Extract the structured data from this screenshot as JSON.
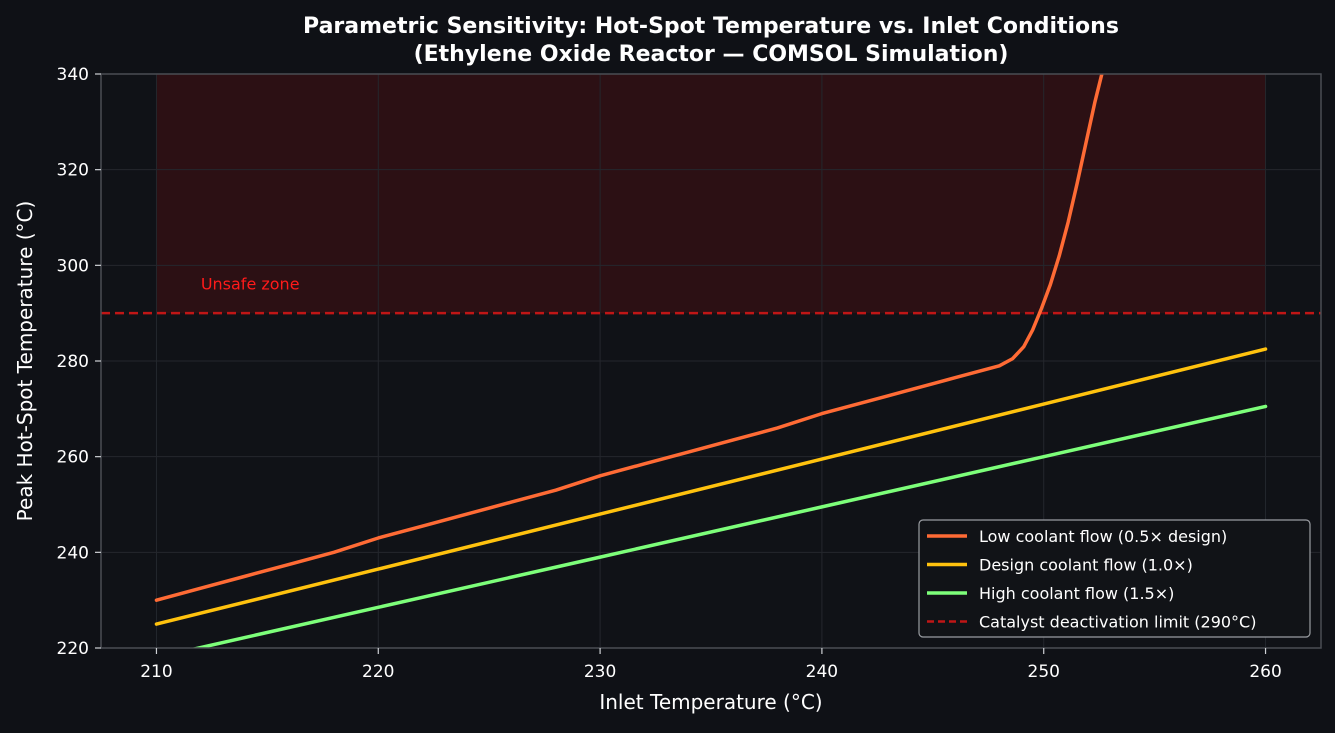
{
  "chart_data": {
    "type": "line",
    "title": "Parametric Sensitivity: Hot-Spot Temperature vs. Inlet Conditions",
    "subtitle": "(Ethylene Oxide Reactor — COMSOL Simulation)",
    "xlabel": "Inlet Temperature (°C)",
    "ylabel": "Peak Hot-Spot Temperature (°C)",
    "xlim": [
      207.5,
      262.5
    ],
    "ylim": [
      220,
      340
    ],
    "xticks": [
      210,
      220,
      230,
      240,
      250,
      260
    ],
    "yticks": [
      220,
      240,
      260,
      280,
      300,
      320,
      340
    ],
    "grid": true,
    "legend_position": "lower-right",
    "colors": {
      "background": "#0f1116",
      "plot_background": "#101217",
      "grid": "#24272d",
      "axes": "#4a4d53",
      "text": "#ffffff",
      "unsafe_fill": "#2c1014",
      "limit_line": "#c01616",
      "unsafe_label": "#ff1a1a"
    },
    "series": [
      {
        "name": "Low coolant flow (0.5× design)",
        "color": "#ff6b35",
        "x": [
          210,
          212,
          214,
          216,
          218,
          220,
          222,
          224,
          226,
          228,
          230,
          232,
          234,
          236,
          238,
          240,
          242,
          244,
          246,
          248,
          248.6,
          249.1,
          249.5,
          249.9,
          250.3,
          250.7,
          251.1,
          251.5,
          251.9,
          252.3,
          252.7,
          253
        ],
        "y": [
          230,
          232.5,
          235,
          237.5,
          240,
          243,
          245.5,
          248,
          250.5,
          253,
          256,
          258.5,
          261,
          263.5,
          266,
          269,
          271.5,
          274,
          276.5,
          279,
          280.5,
          283,
          286.5,
          291,
          296,
          302,
          309,
          317,
          325.5,
          334,
          341.5,
          346
        ]
      },
      {
        "name": "Design coolant flow (1.0×)",
        "color": "#ffc20e",
        "x": [
          210,
          220,
          230,
          240,
          250,
          260
        ],
        "y": [
          225,
          236.5,
          248,
          259.5,
          271,
          282.5
        ]
      },
      {
        "name": "High coolant flow (1.5×)",
        "color": "#7dff7a",
        "x": [
          210,
          220,
          230,
          240,
          250,
          260
        ],
        "y": [
          218,
          228.5,
          239,
          249.5,
          260,
          270.5
        ]
      }
    ],
    "limit": {
      "name": "Catalyst deactivation limit (290°C)",
      "y": 290,
      "style": "dashed"
    },
    "unsafe_zone": {
      "label": "Unsafe zone",
      "x": [
        210,
        260
      ],
      "y": [
        290,
        340
      ],
      "label_at": [
        212,
        295
      ]
    }
  }
}
